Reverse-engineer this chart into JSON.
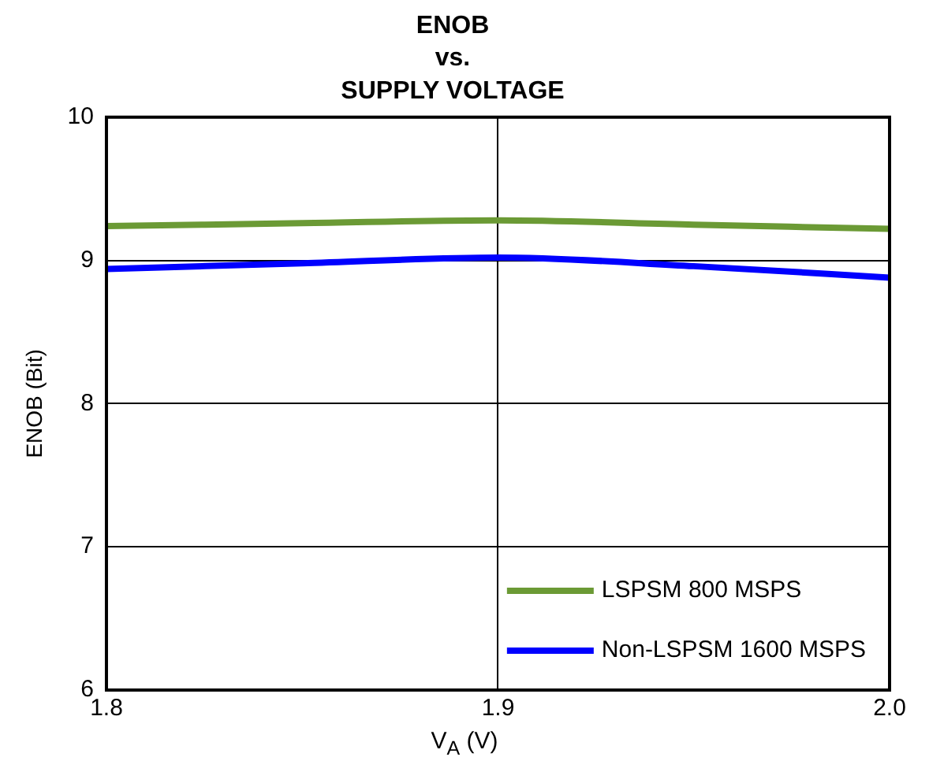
{
  "chart_data": {
    "type": "line",
    "title": "ENOB\nvs.\nSUPPLY VOLTAGE",
    "xlabel": "V$_{A}$ (V)",
    "ylabel": "ENOB (Bit)",
    "x": [
      1.8,
      1.85,
      1.9,
      1.95,
      2.0
    ],
    "series": [
      {
        "name": "LSPSM 800 MSPS",
        "color": "#6b9a35",
        "values": [
          9.24,
          9.26,
          9.28,
          9.25,
          9.22
        ]
      },
      {
        "name": "Non-LSPSM 1600 MSPS",
        "color": "#0000ff",
        "values": [
          8.94,
          8.98,
          9.02,
          8.96,
          8.88
        ]
      }
    ],
    "xlim": [
      1.8,
      2.0
    ],
    "xticks": [
      {
        "value": 1.8,
        "label": "1.8"
      },
      {
        "value": 1.9,
        "label": "1.9"
      },
      {
        "value": 2.0,
        "label": "2.0"
      }
    ],
    "ylim": [
      6,
      10
    ],
    "yticks": [
      6,
      7,
      8,
      9,
      10
    ],
    "grid": true,
    "legend": "bottom right",
    "marker": "none",
    "line_style": "solid"
  }
}
